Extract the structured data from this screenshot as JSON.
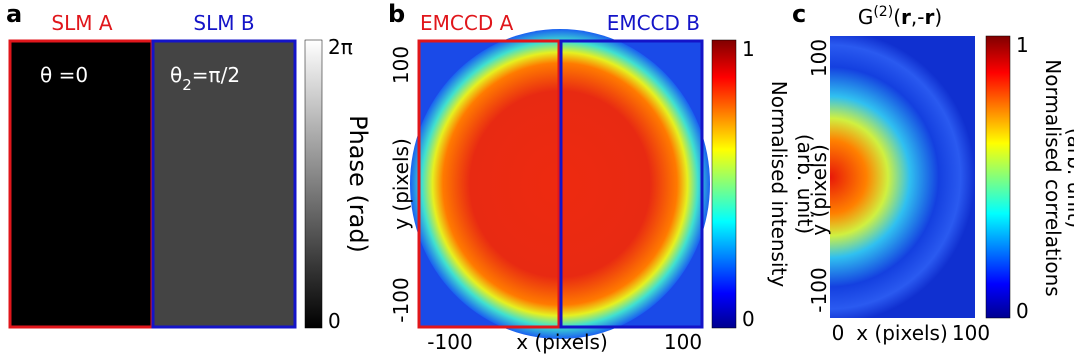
{
  "panels": [
    {
      "label": "a",
      "regions": [
        {
          "label": "SLM A",
          "symbol": "θ",
          "value_text": " =0"
        },
        {
          "label": "SLM B",
          "symbol": "θ",
          "subscript": "2",
          "value_text": "=π/2"
        }
      ],
      "colorbar": {
        "label": "Phase (rad)",
        "ticks": [
          "2π",
          0
        ]
      }
    },
    {
      "label": "b",
      "regions": [
        {
          "label": "EMCCD A"
        },
        {
          "label": "EMCCD B"
        }
      ],
      "xlabel": "x (pixels)",
      "ylabel": "y (pixels)",
      "xticks": [
        -100,
        100
      ],
      "yticks": [
        100,
        -100
      ],
      "colorbar": {
        "label_lines": [
          "Normalised intensity",
          "(arb. unit)"
        ],
        "ticks": [
          1,
          0
        ]
      }
    },
    {
      "label": "c",
      "title": {
        "base": "G",
        "sup": "(2)",
        "parts": [
          "(",
          "r",
          ",-",
          "r",
          ")"
        ]
      },
      "xlabel": "x (pixels)",
      "ylabel": "y (pixels)",
      "xticks": [
        0,
        100
      ],
      "yticks": [
        100,
        -100
      ],
      "colorbar": {
        "label_lines": [
          "Normalised correlations",
          "(arb. unit)"
        ],
        "ticks": [
          1,
          0
        ]
      }
    }
  ]
}
